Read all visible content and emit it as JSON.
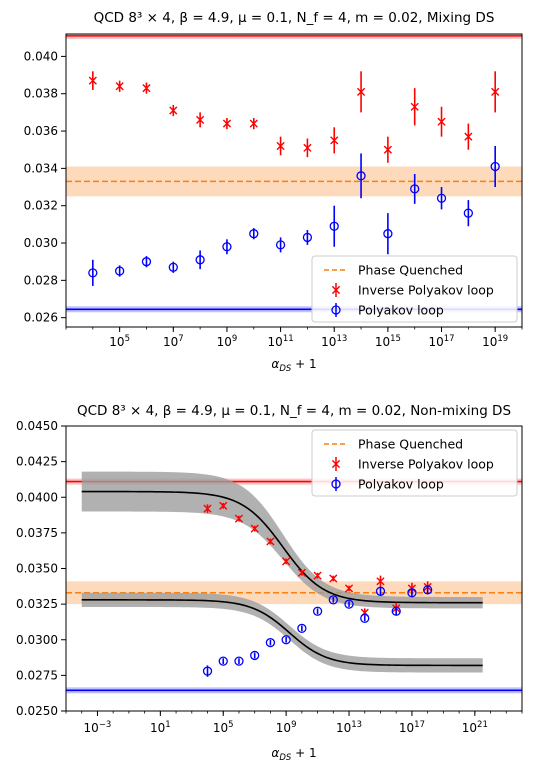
{
  "chart_data": [
    {
      "type": "scatter",
      "title": "QCD 8³ × 4, β = 4.9, μ = 0.1, N_f = 4, m = 0.02, Mixing DS",
      "xlabel": "α_DS + 1",
      "ylabel": "",
      "x_scale": "log",
      "xlim": [
        1000.0,
        1e+20
      ],
      "ylim": [
        0.0255,
        0.0412
      ],
      "x_ticks": [
        {
          "v": 100000.0,
          "base": "10",
          "exp": "5"
        },
        {
          "v": 10000000.0,
          "base": "10",
          "exp": "7"
        },
        {
          "v": 1000000000.0,
          "base": "10",
          "exp": "9"
        },
        {
          "v": 100000000000.0,
          "base": "10",
          "exp": "11"
        },
        {
          "v": 10000000000000.0,
          "base": "10",
          "exp": "13"
        },
        {
          "v": 1000000000000000.0,
          "base": "10",
          "exp": "15"
        },
        {
          "v": 1e+17,
          "base": "10",
          "exp": "17"
        },
        {
          "v": 1e+19,
          "base": "10",
          "exp": "19"
        }
      ],
      "y_ticks": [
        {
          "v": 0.026,
          "label": "0.026"
        },
        {
          "v": 0.028,
          "label": "0.028"
        },
        {
          "v": 0.03,
          "label": "0.030"
        },
        {
          "v": 0.032,
          "label": "0.032"
        },
        {
          "v": 0.034,
          "label": "0.034"
        },
        {
          "v": 0.036,
          "label": "0.036"
        },
        {
          "v": 0.038,
          "label": "0.038"
        },
        {
          "v": 0.04,
          "label": "0.040"
        }
      ],
      "ref_lines": {
        "inverse_polyakov_exact": 0.0411,
        "polyakov_exact": 0.02645,
        "phase_quenched": 0.0333,
        "phase_quenched_band": [
          0.0325,
          0.0341
        ]
      },
      "legend": {
        "placement": "lower-right",
        "items": [
          "Phase Quenched",
          "Inverse Polyakov loop",
          "Polyakov loop"
        ]
      },
      "series": [
        {
          "name": "Inverse Polyakov loop",
          "marker": "x",
          "color": "#ff0000",
          "points": [
            {
              "x": 10000.0,
              "y": 0.0387,
              "err": 0.0005
            },
            {
              "x": 100000.0,
              "y": 0.0384,
              "err": 0.0003
            },
            {
              "x": 1000000.0,
              "y": 0.0383,
              "err": 0.0003
            },
            {
              "x": 10000000.0,
              "y": 0.0371,
              "err": 0.0003
            },
            {
              "x": 100000000.0,
              "y": 0.0366,
              "err": 0.0004
            },
            {
              "x": 1000000000.0,
              "y": 0.0364,
              "err": 0.0003
            },
            {
              "x": 10000000000.0,
              "y": 0.0364,
              "err": 0.0003
            },
            {
              "x": 100000000000.0,
              "y": 0.0352,
              "err": 0.0005
            },
            {
              "x": 1000000000000.0,
              "y": 0.0351,
              "err": 0.0005
            },
            {
              "x": 10000000000000.0,
              "y": 0.0355,
              "err": 0.0007
            },
            {
              "x": 100000000000000.0,
              "y": 0.0381,
              "err": 0.0011
            },
            {
              "x": 1000000000000000.0,
              "y": 0.035,
              "err": 0.0007
            },
            {
              "x": 1e+16,
              "y": 0.0373,
              "err": 0.001
            },
            {
              "x": 1e+17,
              "y": 0.0365,
              "err": 0.0008
            },
            {
              "x": 1e+18,
              "y": 0.0357,
              "err": 0.0007
            },
            {
              "x": 1e+19,
              "y": 0.0381,
              "err": 0.0011
            }
          ]
        },
        {
          "name": "Polyakov loop",
          "marker": "o",
          "color": "#0000ff",
          "points": [
            {
              "x": 10000.0,
              "y": 0.0284,
              "err": 0.0007
            },
            {
              "x": 100000.0,
              "y": 0.0285,
              "err": 0.0003
            },
            {
              "x": 1000000.0,
              "y": 0.029,
              "err": 0.0003
            },
            {
              "x": 10000000.0,
              "y": 0.0287,
              "err": 0.0003
            },
            {
              "x": 100000000.0,
              "y": 0.0291,
              "err": 0.0005
            },
            {
              "x": 1000000000.0,
              "y": 0.0298,
              "err": 0.0004
            },
            {
              "x": 10000000000.0,
              "y": 0.0305,
              "err": 0.0003
            },
            {
              "x": 100000000000.0,
              "y": 0.0299,
              "err": 0.0004
            },
            {
              "x": 1000000000000.0,
              "y": 0.0303,
              "err": 0.0004
            },
            {
              "x": 10000000000000.0,
              "y": 0.0309,
              "err": 0.0011
            },
            {
              "x": 100000000000000.0,
              "y": 0.0336,
              "err": 0.0012
            },
            {
              "x": 1000000000000000.0,
              "y": 0.0305,
              "err": 0.0011
            },
            {
              "x": 1e+16,
              "y": 0.0329,
              "err": 0.0008
            },
            {
              "x": 1e+17,
              "y": 0.0324,
              "err": 0.0006
            },
            {
              "x": 1e+18,
              "y": 0.0316,
              "err": 0.0007
            },
            {
              "x": 1e+19,
              "y": 0.0341,
              "err": 0.0011
            }
          ]
        }
      ]
    },
    {
      "type": "scatter",
      "title": "QCD 8³ × 4, β = 4.9, μ = 0.1, N_f = 4, m = 0.02, Non-mixing DS",
      "xlabel": "α_DS + 1",
      "ylabel": "",
      "x_scale": "log",
      "xlim": [
        1e-05,
        1e+24
      ],
      "ylim": [
        0.025,
        0.045
      ],
      "x_ticks": [
        {
          "v": 0.001,
          "base": "10",
          "exp": "−3"
        },
        {
          "v": 10.0,
          "base": "10",
          "exp": "1"
        },
        {
          "v": 100000.0,
          "base": "10",
          "exp": "5"
        },
        {
          "v": 1000000000.0,
          "base": "10",
          "exp": "9"
        },
        {
          "v": 10000000000000.0,
          "base": "10",
          "exp": "13"
        },
        {
          "v": 1e+17,
          "base": "10",
          "exp": "17"
        },
        {
          "v": 1e+21,
          "base": "10",
          "exp": "21"
        }
      ],
      "y_ticks": [
        {
          "v": 0.025,
          "label": "0.0250"
        },
        {
          "v": 0.0275,
          "label": "0.0275"
        },
        {
          "v": 0.03,
          "label": "0.0300"
        },
        {
          "v": 0.0325,
          "label": "0.0325"
        },
        {
          "v": 0.035,
          "label": "0.0350"
        },
        {
          "v": 0.0375,
          "label": "0.0375"
        },
        {
          "v": 0.04,
          "label": "0.0400"
        },
        {
          "v": 0.0425,
          "label": "0.0425"
        },
        {
          "v": 0.045,
          "label": "0.0450"
        }
      ],
      "ref_lines": {
        "inverse_polyakov_exact": 0.0411,
        "polyakov_exact": 0.02645,
        "phase_quenched": 0.0333,
        "phase_quenched_band": [
          0.0325,
          0.0341
        ]
      },
      "fits": [
        {
          "name": "Inverse Polyakov loop fit",
          "high": 0.0404,
          "low": 0.0326,
          "center_log10": 8.8,
          "width_decades": 1.3,
          "band_high": 0.0014,
          "band_low": 0.0004
        },
        {
          "name": "Polyakov loop fit",
          "high": 0.0328,
          "low": 0.0282,
          "center_log10": 9.2,
          "width_decades": 1.2,
          "band_high": 0.0005,
          "band_low": 0.0005
        }
      ],
      "legend": {
        "placement": "upper-right",
        "items": [
          "Phase Quenched",
          "Inverse Polyakov loop",
          "Polyakov loop"
        ]
      },
      "series": [
        {
          "name": "Inverse Polyakov loop",
          "marker": "x",
          "color": "#ff0000",
          "points": [
            {
              "x": 10000.0,
              "y": 0.0392,
              "err": 0.0003
            },
            {
              "x": 100000.0,
              "y": 0.0394,
              "err": 0.0002
            },
            {
              "x": 1000000.0,
              "y": 0.0385,
              "err": 0.0002
            },
            {
              "x": 10000000.0,
              "y": 0.0378,
              "err": 0.0002
            },
            {
              "x": 100000000.0,
              "y": 0.0369,
              "err": 0.0002
            },
            {
              "x": 1000000000.0,
              "y": 0.0355,
              "err": 0.0002
            },
            {
              "x": 10000000000.0,
              "y": 0.0347,
              "err": 0.0002
            },
            {
              "x": 100000000000.0,
              "y": 0.0345,
              "err": 0.0002
            },
            {
              "x": 1000000000000.0,
              "y": 0.0343,
              "err": 0.0002
            },
            {
              "x": 10000000000000.0,
              "y": 0.0336,
              "err": 0.0002
            },
            {
              "x": 100000000000000.0,
              "y": 0.0319,
              "err": 0.0003
            },
            {
              "x": 1000000000000000.0,
              "y": 0.0341,
              "err": 0.0004
            },
            {
              "x": 1e+16,
              "y": 0.0322,
              "err": 0.0004
            },
            {
              "x": 1e+17,
              "y": 0.0336,
              "err": 0.0004
            },
            {
              "x": 1e+18,
              "y": 0.0337,
              "err": 0.0004
            }
          ]
        },
        {
          "name": "Polyakov loop",
          "marker": "o",
          "color": "#0000ff",
          "points": [
            {
              "x": 10000.0,
              "y": 0.0278,
              "err": 0.0004
            },
            {
              "x": 100000.0,
              "y": 0.0285,
              "err": 0.0002
            },
            {
              "x": 1000000.0,
              "y": 0.0285,
              "err": 0.0002
            },
            {
              "x": 10000000.0,
              "y": 0.0289,
              "err": 0.0002
            },
            {
              "x": 100000000.0,
              "y": 0.0298,
              "err": 0.0002
            },
            {
              "x": 1000000000.0,
              "y": 0.03,
              "err": 0.0002
            },
            {
              "x": 10000000000.0,
              "y": 0.0308,
              "err": 0.0002
            },
            {
              "x": 100000000000.0,
              "y": 0.032,
              "err": 0.0002
            },
            {
              "x": 1000000000000.0,
              "y": 0.0328,
              "err": 0.0002
            },
            {
              "x": 10000000000000.0,
              "y": 0.0325,
              "err": 0.0002
            },
            {
              "x": 100000000000000.0,
              "y": 0.0315,
              "err": 0.0002
            },
            {
              "x": 1000000000000000.0,
              "y": 0.0334,
              "err": 0.0003
            },
            {
              "x": 1e+16,
              "y": 0.032,
              "err": 0.0003
            },
            {
              "x": 1e+17,
              "y": 0.0333,
              "err": 0.0003
            },
            {
              "x": 1e+18,
              "y": 0.0335,
              "err": 0.0003
            }
          ]
        }
      ]
    }
  ]
}
